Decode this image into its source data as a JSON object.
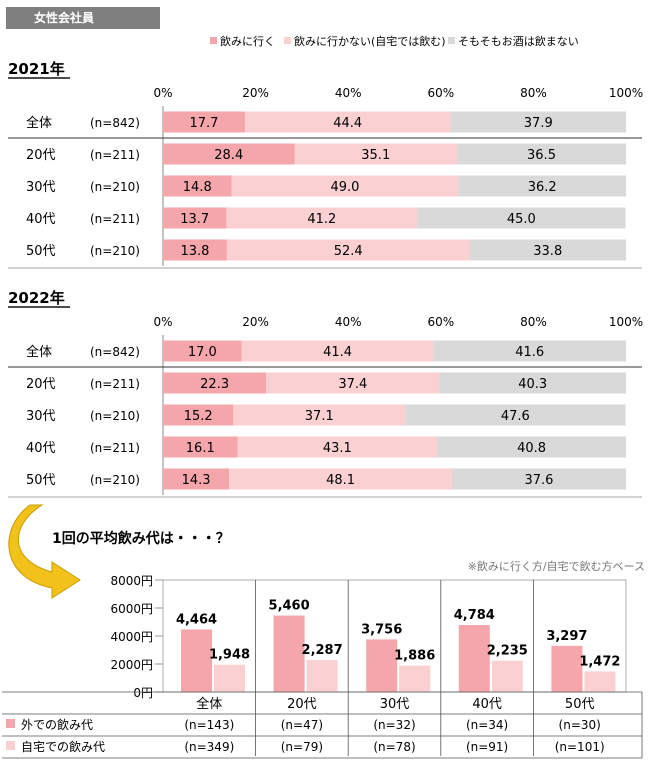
{
  "header": {
    "tag": "女性会社員"
  },
  "legend": [
    "飲みに行く",
    "飲みに行かない(自宅では飲む)",
    "そもそもお酒は飲まない"
  ],
  "colors": {
    "out": "#f4a6ab",
    "home": "#fad0d2",
    "none": "#d9d9d9",
    "arrow": "#f2c21b"
  },
  "chart_data": [
    {
      "type": "bar",
      "title": "2021年",
      "stacked": true,
      "orientation": "horizontal",
      "x_ticks": [
        "0%",
        "20%",
        "40%",
        "60%",
        "80%",
        "100%"
      ],
      "xlim": [
        0,
        100
      ],
      "categories": [
        "全体",
        "20代",
        "30代",
        "40代",
        "50代"
      ],
      "sample_sizes": [
        "(n=842)",
        "(n=211)",
        "(n=210)",
        "(n=211)",
        "(n=210)"
      ],
      "series": [
        {
          "name": "飲みに行く",
          "values": [
            17.7,
            28.4,
            14.8,
            13.7,
            13.8
          ]
        },
        {
          "name": "飲みに行かない(自宅では飲む)",
          "values": [
            44.4,
            35.1,
            49.0,
            41.2,
            52.4
          ]
        },
        {
          "name": "そもそもお酒は飲まない",
          "values": [
            37.9,
            36.5,
            36.2,
            45.0,
            33.8
          ]
        }
      ]
    },
    {
      "type": "bar",
      "title": "2022年",
      "stacked": true,
      "orientation": "horizontal",
      "x_ticks": [
        "0%",
        "20%",
        "40%",
        "60%",
        "80%",
        "100%"
      ],
      "xlim": [
        0,
        100
      ],
      "categories": [
        "全体",
        "20代",
        "30代",
        "40代",
        "50代"
      ],
      "sample_sizes": [
        "(n=842)",
        "(n=211)",
        "(n=210)",
        "(n=211)",
        "(n=210)"
      ],
      "series": [
        {
          "name": "飲みに行く",
          "values": [
            17.0,
            22.3,
            15.2,
            16.1,
            14.3
          ]
        },
        {
          "name": "飲みに行かない(自宅では飲む)",
          "values": [
            41.4,
            37.4,
            37.1,
            43.1,
            48.1
          ]
        },
        {
          "name": "そもそもお酒は飲まない",
          "values": [
            41.6,
            40.3,
            47.6,
            40.8,
            37.6
          ]
        }
      ]
    },
    {
      "type": "bar",
      "title": "1回の平均飲み代は・・・？",
      "note": "※飲みに行く方/自宅で飲む方ベース",
      "y_ticks": [
        "0円",
        "2000円",
        "4000円",
        "6000円",
        "8000円"
      ],
      "ylim": [
        0,
        8000
      ],
      "categories": [
        "全体",
        "20代",
        "30代",
        "40代",
        "50代"
      ],
      "series": [
        {
          "name": "外での飲み代",
          "values": [
            4464,
            5460,
            3756,
            4784,
            3297
          ],
          "labels": [
            "4,464",
            "5,460",
            "3,756",
            "4,784",
            "3,297"
          ],
          "n": [
            "(n=143)",
            "(n=47)",
            "(n=32)",
            "(n=34)",
            "(n=30)"
          ]
        },
        {
          "name": "自宅での飲み代",
          "values": [
            1948,
            2287,
            1886,
            2235,
            1472
          ],
          "labels": [
            "1,948",
            "2,287",
            "1,886",
            "2,235",
            "1,472"
          ],
          "n": [
            "(n=349)",
            "(n=79)",
            "(n=78)",
            "(n=91)",
            "(n=101)"
          ]
        }
      ]
    }
  ]
}
